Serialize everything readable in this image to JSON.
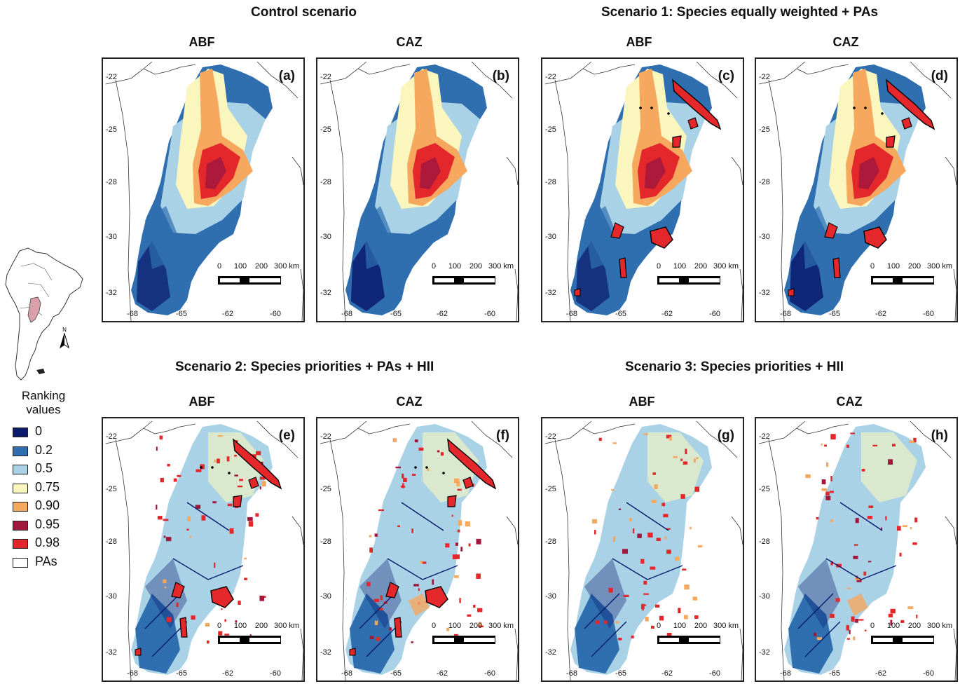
{
  "scenarios": [
    {
      "title": "Control scenario"
    },
    {
      "title": "Scenario 1: Species equally weighted + PAs"
    },
    {
      "title": "Scenario 2: Species priorities + PAs + HII"
    },
    {
      "title": "Scenario 3: Species priorities + HII"
    }
  ],
  "method_labels": [
    "ABF",
    "CAZ",
    "ABF",
    "CAZ",
    "ABF",
    "CAZ",
    "ABF",
    "CAZ"
  ],
  "panels": [
    {
      "letter": "(a)",
      "method": "ABF",
      "scenario": "Control scenario",
      "pattern": "smooth",
      "pas": false
    },
    {
      "letter": "(b)",
      "method": "CAZ",
      "scenario": "Control scenario",
      "pattern": "smooth",
      "pas": false
    },
    {
      "letter": "(c)",
      "method": "ABF",
      "scenario": "Scenario 1: Species equally weighted + PAs",
      "pattern": "smooth",
      "pas": true
    },
    {
      "letter": "(d)",
      "method": "CAZ",
      "scenario": "Scenario 1: Species equally weighted + PAs",
      "pattern": "smooth",
      "pas": true
    },
    {
      "letter": "(e)",
      "method": "ABF",
      "scenario": "Scenario 2: Species priorities + PAs + HII",
      "pattern": "fragmented",
      "pas": true
    },
    {
      "letter": "(f)",
      "method": "CAZ",
      "scenario": "Scenario 2: Species priorities + PAs + HII",
      "pattern": "fragmented",
      "pas": true
    },
    {
      "letter": "(g)",
      "method": "ABF",
      "scenario": "Scenario 3: Species priorities + HII",
      "pattern": "fragmented",
      "pas": false
    },
    {
      "letter": "(h)",
      "method": "CAZ",
      "scenario": "Scenario 3: Species priorities + HII",
      "pattern": "fragmented",
      "pas": false
    }
  ],
  "axes": {
    "latitudes": [
      "-22",
      "-25",
      "-28",
      "-30",
      "-32"
    ],
    "longitudes": [
      "-68",
      "-65",
      "-62",
      "-60"
    ]
  },
  "scale_bar": {
    "labels": [
      "0",
      "100",
      "200",
      "300 km"
    ]
  },
  "inset": {
    "north_label": "N"
  },
  "legend": {
    "title_line1": "Ranking",
    "title_line2": "values",
    "items": [
      {
        "label": "0",
        "color": "#0a1a6e"
      },
      {
        "label": "0.2",
        "color": "#2f6fb0"
      },
      {
        "label": "0.5",
        "color": "#a9d2e6"
      },
      {
        "label": "0.75",
        "color": "#fbf6bd"
      },
      {
        "label": "0.90",
        "color": "#f6a85f"
      },
      {
        "label": "0.95",
        "color": "#a3173d"
      },
      {
        "label": "0.98",
        "color": "#e3272b"
      },
      {
        "label": "PAs",
        "color": "#ffffff"
      }
    ]
  }
}
